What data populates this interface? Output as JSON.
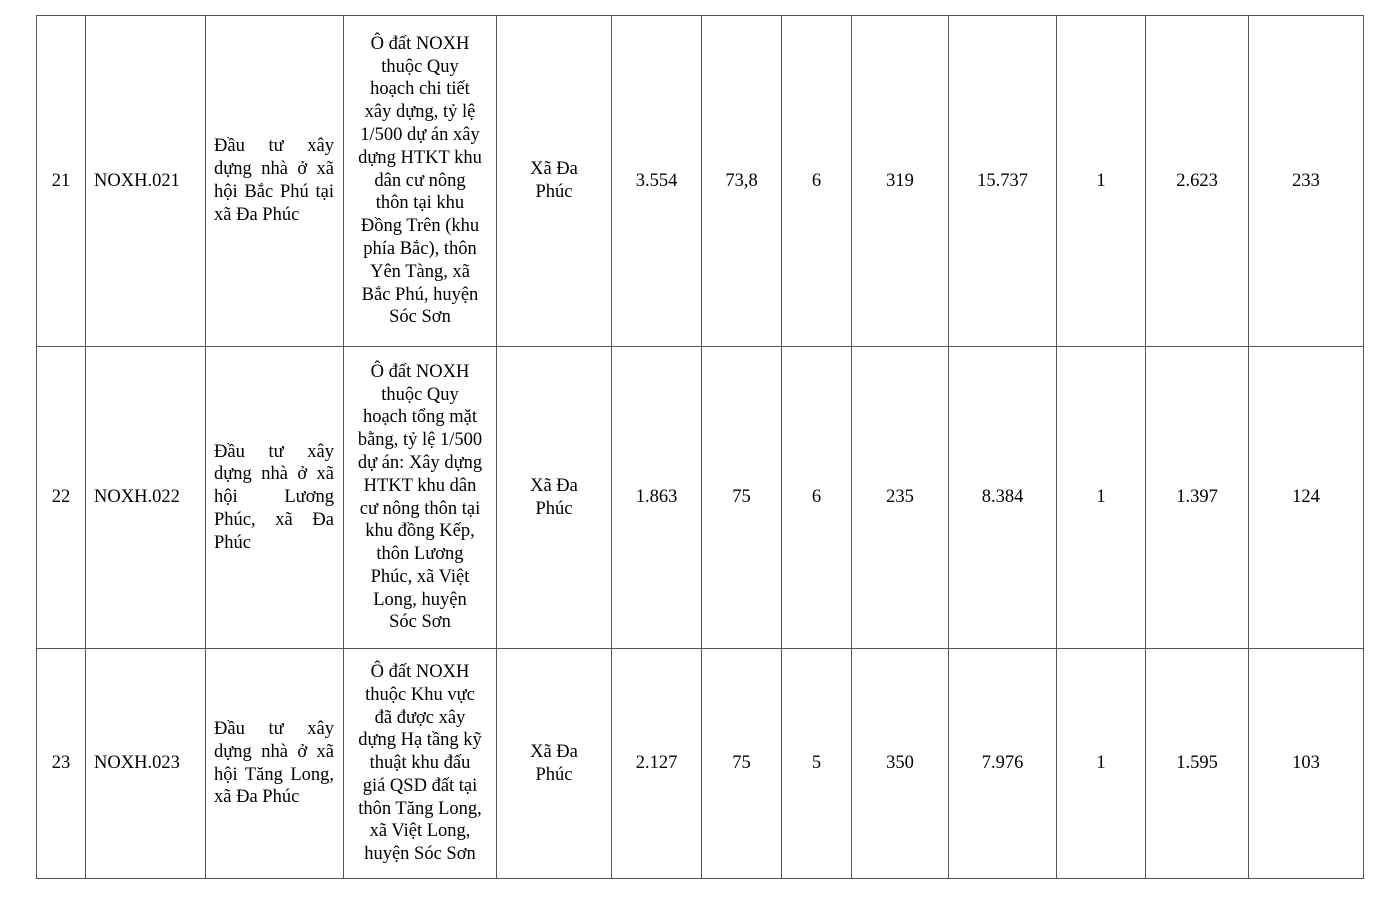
{
  "rows": [
    {
      "stt": "21",
      "code": "NOXH.021",
      "name": "Đầu tư xây dựng nhà ở xã hội Bắc Phú tại xã Đa Phúc",
      "location": "Ô đất NOXH\nthuộc Quy\nhoạch chi tiết\nxây dựng, tỷ lệ\n1/500 dự án xây\ndựng HTKT khu\ndân cư nông\nthôn tại khu\nĐồng Trên (khu\nphía Bắc), thôn\nYên Tàng, xã\nBắc Phú, huyện\nSóc Sơn",
      "commune": "Xã Đa\nPhúc",
      "c6": "3.554",
      "c7": "73,8",
      "c8": "6",
      "c9": "319",
      "c10": "15.737",
      "c11": "1",
      "c12": "2.623",
      "c13": "233"
    },
    {
      "stt": "22",
      "code": "NOXH.022",
      "name": "Đầu tư xây dựng nhà ở xã hội Lương Phúc, xã Đa Phúc",
      "location": "Ô đất NOXH\nthuộc Quy\nhoạch tổng mặt\nbằng, tỷ lệ 1/500\ndự án: Xây dựng\nHTKT khu dân\ncư nông thôn tại\nkhu đồng Kếp,\nthôn Lương\nPhúc, xã Việt\nLong, huyện\nSóc Sơn",
      "commune": "Xã Đa\nPhúc",
      "c6": "1.863",
      "c7": "75",
      "c8": "6",
      "c9": "235",
      "c10": "8.384",
      "c11": "1",
      "c12": "1.397",
      "c13": "124"
    },
    {
      "stt": "23",
      "code": "NOXH.023",
      "name": "Đầu tư xây dựng nhà ở xã hội Tăng Long, xã Đa Phúc",
      "location": "Ô đất NOXH\nthuộc Khu vực\nđã được xây\ndựng Hạ tầng kỹ\nthuật khu đấu\ngiá QSD đất tại\nthôn Tăng Long,\nxã Việt Long,\nhuyện Sóc Sơn",
      "commune": "Xã Đa\nPhúc",
      "c6": "2.127",
      "c7": "75",
      "c8": "5",
      "c9": "350",
      "c10": "7.976",
      "c11": "1",
      "c12": "1.595",
      "c13": "103"
    }
  ]
}
